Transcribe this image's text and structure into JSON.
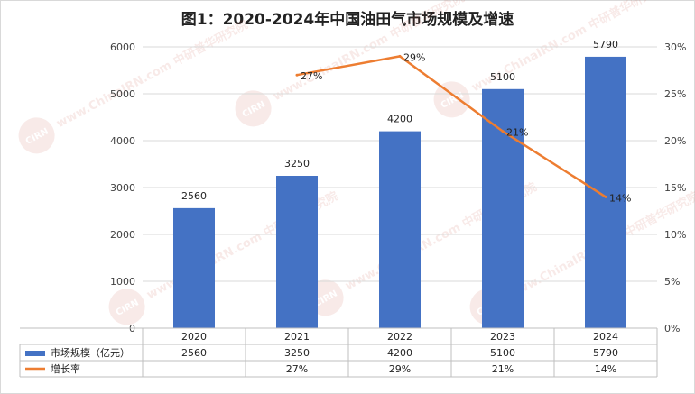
{
  "chart_data": {
    "type": "bar",
    "title": "图1：2020-2024年中国油田气市场规模及增速",
    "categories": [
      "2020",
      "2021",
      "2022",
      "2023",
      "2024"
    ],
    "series": [
      {
        "name": "市场规模（亿元）",
        "type": "bar",
        "axis": "left",
        "color": "#4472C4",
        "values": [
          2560,
          3250,
          4200,
          5100,
          5790
        ],
        "labels": [
          "2560",
          "3250",
          "4200",
          "5100",
          "5790"
        ]
      },
      {
        "name": "增长率",
        "type": "line",
        "axis": "right",
        "color": "#ED7D31",
        "values": [
          null,
          27,
          29,
          21,
          14
        ],
        "labels": [
          "",
          "27%",
          "29%",
          "21%",
          "14%"
        ]
      }
    ],
    "y_left": {
      "range": [
        0,
        6000
      ],
      "ticks": [
        "0",
        "1000",
        "2000",
        "3000",
        "4000",
        "5000",
        "6000"
      ]
    },
    "y_right": {
      "range": [
        0,
        30
      ],
      "ticks": [
        "0%",
        "5%",
        "10%",
        "15%",
        "20%",
        "25%",
        "30%"
      ]
    },
    "grid": true,
    "legend": "bottom data table"
  },
  "watermark": {
    "text": "www.ChinaIRN.com 中研普华研究院",
    "logo": "CIRN"
  }
}
